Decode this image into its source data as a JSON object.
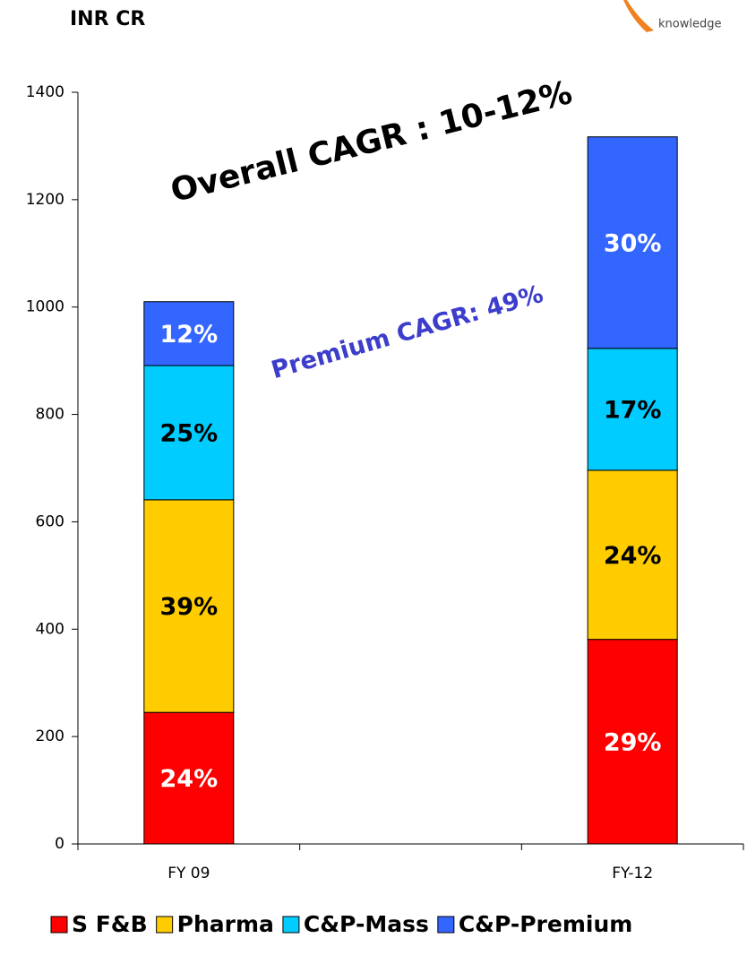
{
  "chart_data": {
    "type": "stacked_bar",
    "title": "INR CR",
    "logo_text": "knowledge",
    "annotations": [
      "Overall CAGR : 10-12%",
      "Premium CAGR: 49%"
    ],
    "categories": [
      "FY 09",
      "FY-12"
    ],
    "series": [
      {
        "name": "S F&B",
        "color": "#ff0000",
        "values": [
          245,
          381
        ],
        "value_labels": [
          "24%",
          "29%"
        ]
      },
      {
        "name": "Pharma",
        "color": "#ffcc00",
        "values": [
          396,
          315
        ],
        "value_labels": [
          "39%",
          "24%"
        ]
      },
      {
        "name": "C&P-Mass",
        "color": "#00ccff",
        "values": [
          250,
          227
        ],
        "value_labels": [
          "25%",
          "17%"
        ]
      },
      {
        "name": "C&P-Premium",
        "color": "#3366ff",
        "values": [
          119,
          394
        ],
        "value_labels": [
          "12%",
          "30%"
        ]
      }
    ],
    "ylim": [
      0,
      1400
    ],
    "yticks": [
      0,
      200,
      400,
      600,
      800,
      1000,
      1200,
      1400
    ],
    "grid": false
  }
}
